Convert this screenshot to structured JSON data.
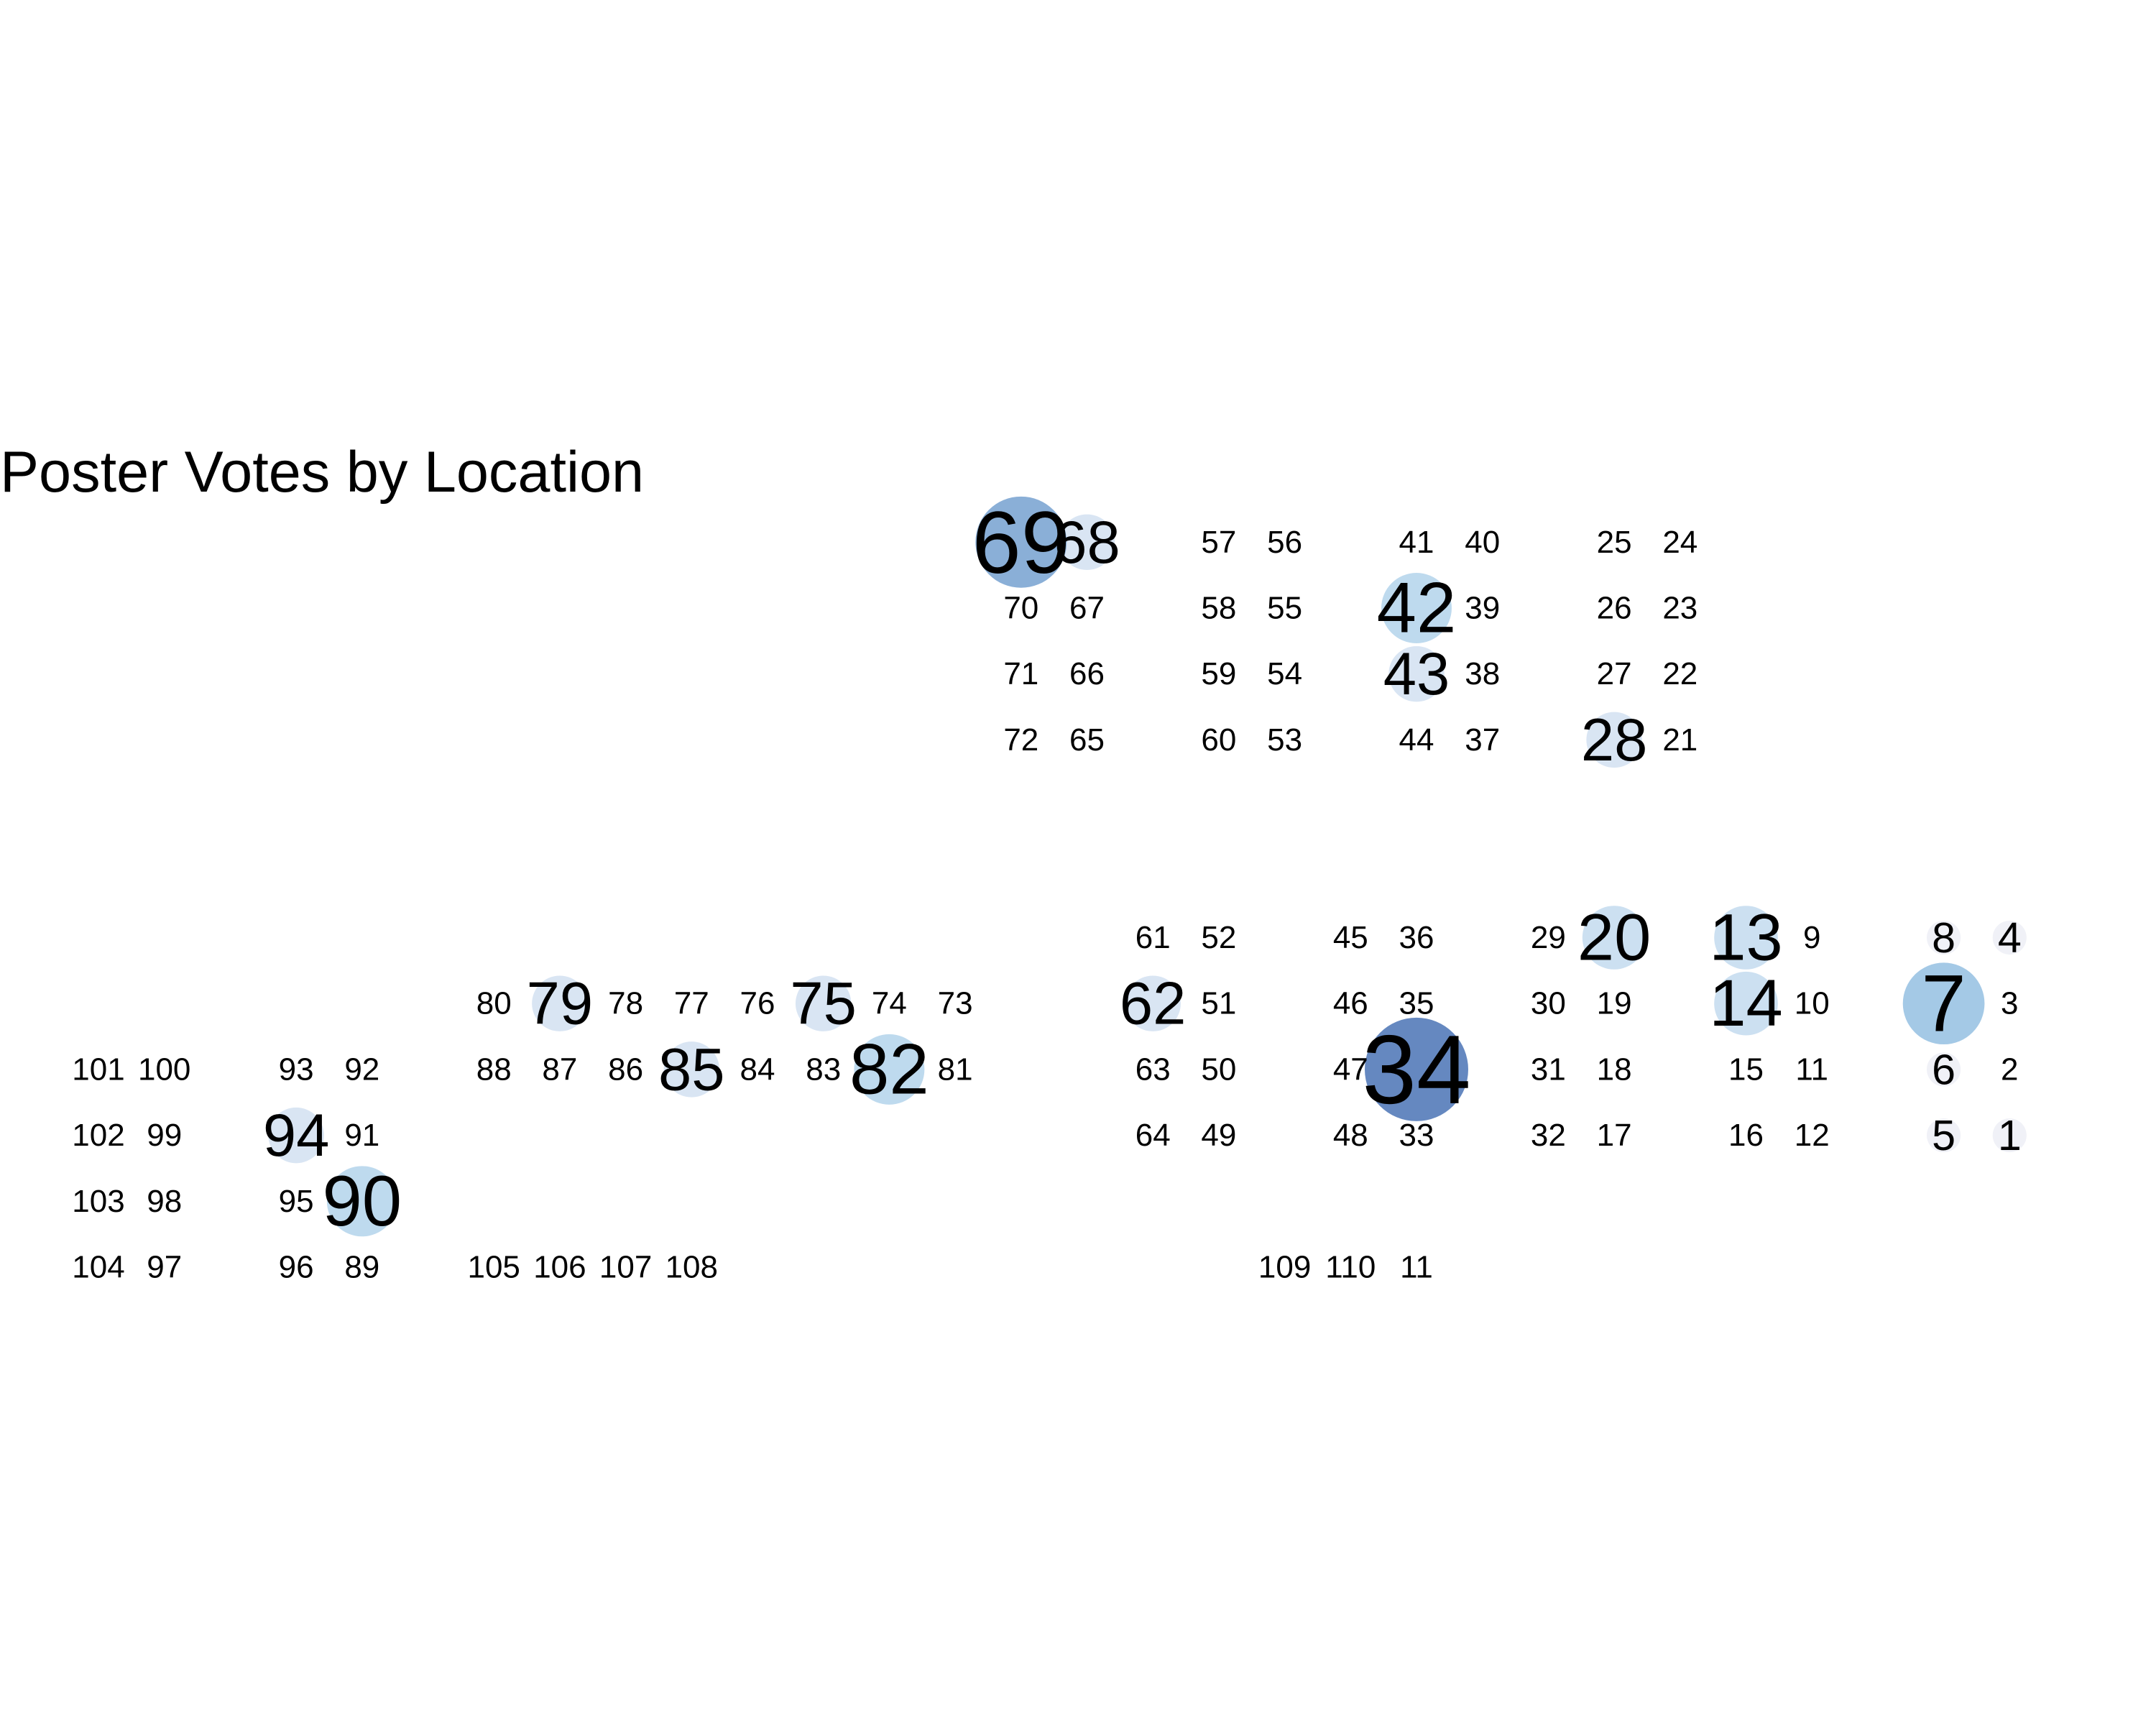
{
  "chart_data": {
    "type": "scatter",
    "title": "Poster Votes by Location",
    "xlabel": "",
    "ylabel": "",
    "grid": false,
    "legend": "none",
    "encoding": "each poster number is drawn at its floor-plan location; marker size and color intensity scale with vote count",
    "color_low": "#f2f0f7",
    "color_high": "#4a73b5",
    "xlim": [
      0,
      31
    ],
    "ylim": [
      0,
      20
    ],
    "points": [
      {
        "label": "1",
        "x": 29,
        "y": 8,
        "votes": 0.3
      },
      {
        "label": "2",
        "x": 29,
        "y": 9,
        "votes": 0
      },
      {
        "label": "3",
        "x": 29,
        "y": 10,
        "votes": 0
      },
      {
        "label": "4",
        "x": 29,
        "y": 11,
        "votes": 0.3
      },
      {
        "label": "5",
        "x": 28,
        "y": 8,
        "votes": 0.3
      },
      {
        "label": "6",
        "x": 28,
        "y": 9,
        "votes": 0.3
      },
      {
        "label": "7",
        "x": 28,
        "y": 10,
        "votes": 6
      },
      {
        "label": "8",
        "x": 28,
        "y": 11,
        "votes": 0.3
      },
      {
        "label": "9",
        "x": 26,
        "y": 11,
        "votes": 0
      },
      {
        "label": "10",
        "x": 26,
        "y": 10,
        "votes": 0
      },
      {
        "label": "11",
        "x": 26,
        "y": 9,
        "votes": 0
      },
      {
        "label": "12",
        "x": 26,
        "y": 8,
        "votes": 0
      },
      {
        "label": "13",
        "x": 25,
        "y": 11,
        "votes": 3
      },
      {
        "label": "14",
        "x": 25,
        "y": 10,
        "votes": 3
      },
      {
        "label": "15",
        "x": 25,
        "y": 9,
        "votes": 0
      },
      {
        "label": "16",
        "x": 25,
        "y": 8,
        "votes": 0
      },
      {
        "label": "17",
        "x": 23,
        "y": 8,
        "votes": 0
      },
      {
        "label": "18",
        "x": 23,
        "y": 9,
        "votes": 0
      },
      {
        "label": "19",
        "x": 23,
        "y": 10,
        "votes": 0
      },
      {
        "label": "20",
        "x": 23,
        "y": 11,
        "votes": 3
      },
      {
        "label": "21",
        "x": 24,
        "y": 14,
        "votes": 0
      },
      {
        "label": "22",
        "x": 24,
        "y": 15,
        "votes": 0
      },
      {
        "label": "23",
        "x": 24,
        "y": 16,
        "votes": 0
      },
      {
        "label": "24",
        "x": 24,
        "y": 17,
        "votes": 0
      },
      {
        "label": "25",
        "x": 23,
        "y": 17,
        "votes": 0
      },
      {
        "label": "26",
        "x": 23,
        "y": 16,
        "votes": 0
      },
      {
        "label": "27",
        "x": 23,
        "y": 15,
        "votes": 0
      },
      {
        "label": "28",
        "x": 23,
        "y": 14,
        "votes": 2
      },
      {
        "label": "29",
        "x": 22,
        "y": 11,
        "votes": 0
      },
      {
        "label": "30",
        "x": 22,
        "y": 10,
        "votes": 0
      },
      {
        "label": "31",
        "x": 22,
        "y": 9,
        "votes": 0
      },
      {
        "label": "32",
        "x": 22,
        "y": 8,
        "votes": 0
      },
      {
        "label": "33",
        "x": 20,
        "y": 8,
        "votes": 0
      },
      {
        "label": "34",
        "x": 20,
        "y": 9,
        "votes": 11
      },
      {
        "label": "35",
        "x": 20,
        "y": 10,
        "votes": 0
      },
      {
        "label": "36",
        "x": 20,
        "y": 11,
        "votes": 0
      },
      {
        "label": "37",
        "x": 21,
        "y": 14,
        "votes": 0
      },
      {
        "label": "38",
        "x": 21,
        "y": 15,
        "votes": 0
      },
      {
        "label": "39",
        "x": 21,
        "y": 16,
        "votes": 0
      },
      {
        "label": "40",
        "x": 21,
        "y": 17,
        "votes": 0
      },
      {
        "label": "41",
        "x": 20,
        "y": 17,
        "votes": 0
      },
      {
        "label": "42",
        "x": 20,
        "y": 16,
        "votes": 4
      },
      {
        "label": "43",
        "x": 20,
        "y": 15,
        "votes": 2
      },
      {
        "label": "44",
        "x": 20,
        "y": 14,
        "votes": 0
      },
      {
        "label": "45",
        "x": 19,
        "y": 11,
        "votes": 0
      },
      {
        "label": "46",
        "x": 19,
        "y": 10,
        "votes": 0
      },
      {
        "label": "47",
        "x": 19,
        "y": 9,
        "votes": 0
      },
      {
        "label": "48",
        "x": 19,
        "y": 8,
        "votes": 0
      },
      {
        "label": "49",
        "x": 17,
        "y": 8,
        "votes": 0
      },
      {
        "label": "50",
        "x": 17,
        "y": 9,
        "votes": 0
      },
      {
        "label": "51",
        "x": 17,
        "y": 10,
        "votes": 0
      },
      {
        "label": "52",
        "x": 17,
        "y": 11,
        "votes": 0
      },
      {
        "label": "53",
        "x": 18,
        "y": 14,
        "votes": 0
      },
      {
        "label": "54",
        "x": 18,
        "y": 15,
        "votes": 0
      },
      {
        "label": "55",
        "x": 18,
        "y": 16,
        "votes": 0
      },
      {
        "label": "56",
        "x": 18,
        "y": 17,
        "votes": 0
      },
      {
        "label": "57",
        "x": 17,
        "y": 17,
        "votes": 0
      },
      {
        "label": "58",
        "x": 17,
        "y": 16,
        "votes": 0
      },
      {
        "label": "59",
        "x": 17,
        "y": 15,
        "votes": 0
      },
      {
        "label": "60",
        "x": 17,
        "y": 14,
        "votes": 0
      },
      {
        "label": "61",
        "x": 16,
        "y": 11,
        "votes": 0
      },
      {
        "label": "62",
        "x": 16,
        "y": 10,
        "votes": 2
      },
      {
        "label": "63",
        "x": 16,
        "y": 9,
        "votes": 0
      },
      {
        "label": "64",
        "x": 16,
        "y": 8,
        "votes": 0
      },
      {
        "label": "65",
        "x": 15,
        "y": 14,
        "votes": 0
      },
      {
        "label": "66",
        "x": 15,
        "y": 15,
        "votes": 0
      },
      {
        "label": "67",
        "x": 15,
        "y": 16,
        "votes": 0
      },
      {
        "label": "68",
        "x": 15,
        "y": 17,
        "votes": 2
      },
      {
        "label": "69",
        "x": 14,
        "y": 17,
        "votes": 8
      },
      {
        "label": "70",
        "x": 14,
        "y": 16,
        "votes": 0
      },
      {
        "label": "71",
        "x": 14,
        "y": 15,
        "votes": 0
      },
      {
        "label": "72",
        "x": 14,
        "y": 14,
        "votes": 0
      },
      {
        "label": "73",
        "x": 13,
        "y": 10,
        "votes": 0
      },
      {
        "label": "74",
        "x": 12,
        "y": 10,
        "votes": 0
      },
      {
        "label": "75",
        "x": 11,
        "y": 10,
        "votes": 2
      },
      {
        "label": "76",
        "x": 10,
        "y": 10,
        "votes": 0
      },
      {
        "label": "77",
        "x": 9,
        "y": 10,
        "votes": 0
      },
      {
        "label": "78",
        "x": 8,
        "y": 10,
        "votes": 0
      },
      {
        "label": "79",
        "x": 7,
        "y": 10,
        "votes": 2
      },
      {
        "label": "80",
        "x": 6,
        "y": 10,
        "votes": 0
      },
      {
        "label": "81",
        "x": 13,
        "y": 9,
        "votes": 0
      },
      {
        "label": "82",
        "x": 12,
        "y": 9,
        "votes": 4
      },
      {
        "label": "83",
        "x": 11,
        "y": 9,
        "votes": 0
      },
      {
        "label": "84",
        "x": 10,
        "y": 9,
        "votes": 0
      },
      {
        "label": "85",
        "x": 9,
        "y": 9,
        "votes": 2
      },
      {
        "label": "86",
        "x": 8,
        "y": 9,
        "votes": 0
      },
      {
        "label": "87",
        "x": 7,
        "y": 9,
        "votes": 0
      },
      {
        "label": "88",
        "x": 6,
        "y": 9,
        "votes": 0
      },
      {
        "label": "89",
        "x": 4,
        "y": 6,
        "votes": 0
      },
      {
        "label": "90",
        "x": 4,
        "y": 7,
        "votes": 4
      },
      {
        "label": "91",
        "x": 4,
        "y": 8,
        "votes": 0
      },
      {
        "label": "92",
        "x": 4,
        "y": 9,
        "votes": 0
      },
      {
        "label": "93",
        "x": 3,
        "y": 9,
        "votes": 0
      },
      {
        "label": "94",
        "x": 3,
        "y": 8,
        "votes": 2
      },
      {
        "label": "95",
        "x": 3,
        "y": 7,
        "votes": 0
      },
      {
        "label": "96",
        "x": 3,
        "y": 6,
        "votes": 0
      },
      {
        "label": "97",
        "x": 1,
        "y": 6,
        "votes": 0
      },
      {
        "label": "98",
        "x": 1,
        "y": 7,
        "votes": 0
      },
      {
        "label": "99",
        "x": 1,
        "y": 8,
        "votes": 0
      },
      {
        "label": "100",
        "x": 1,
        "y": 9,
        "votes": 0
      },
      {
        "label": "101",
        "x": 0,
        "y": 9,
        "votes": 0
      },
      {
        "label": "102",
        "x": 0,
        "y": 8,
        "votes": 0
      },
      {
        "label": "103",
        "x": 0,
        "y": 7,
        "votes": 0
      },
      {
        "label": "104",
        "x": 0,
        "y": 6,
        "votes": 0
      },
      {
        "label": "105",
        "x": 6,
        "y": 6,
        "votes": 0
      },
      {
        "label": "106",
        "x": 7,
        "y": 6,
        "votes": 0
      },
      {
        "label": "107",
        "x": 8,
        "y": 6,
        "votes": 0
      },
      {
        "label": "108",
        "x": 9,
        "y": 6,
        "votes": 0
      },
      {
        "label": "109",
        "x": 18,
        "y": 6,
        "votes": 0
      },
      {
        "label": "110",
        "x": 19,
        "y": 6,
        "votes": 0
      },
      {
        "label": "11",
        "x": 20,
        "y": 6,
        "votes": 0
      }
    ]
  }
}
